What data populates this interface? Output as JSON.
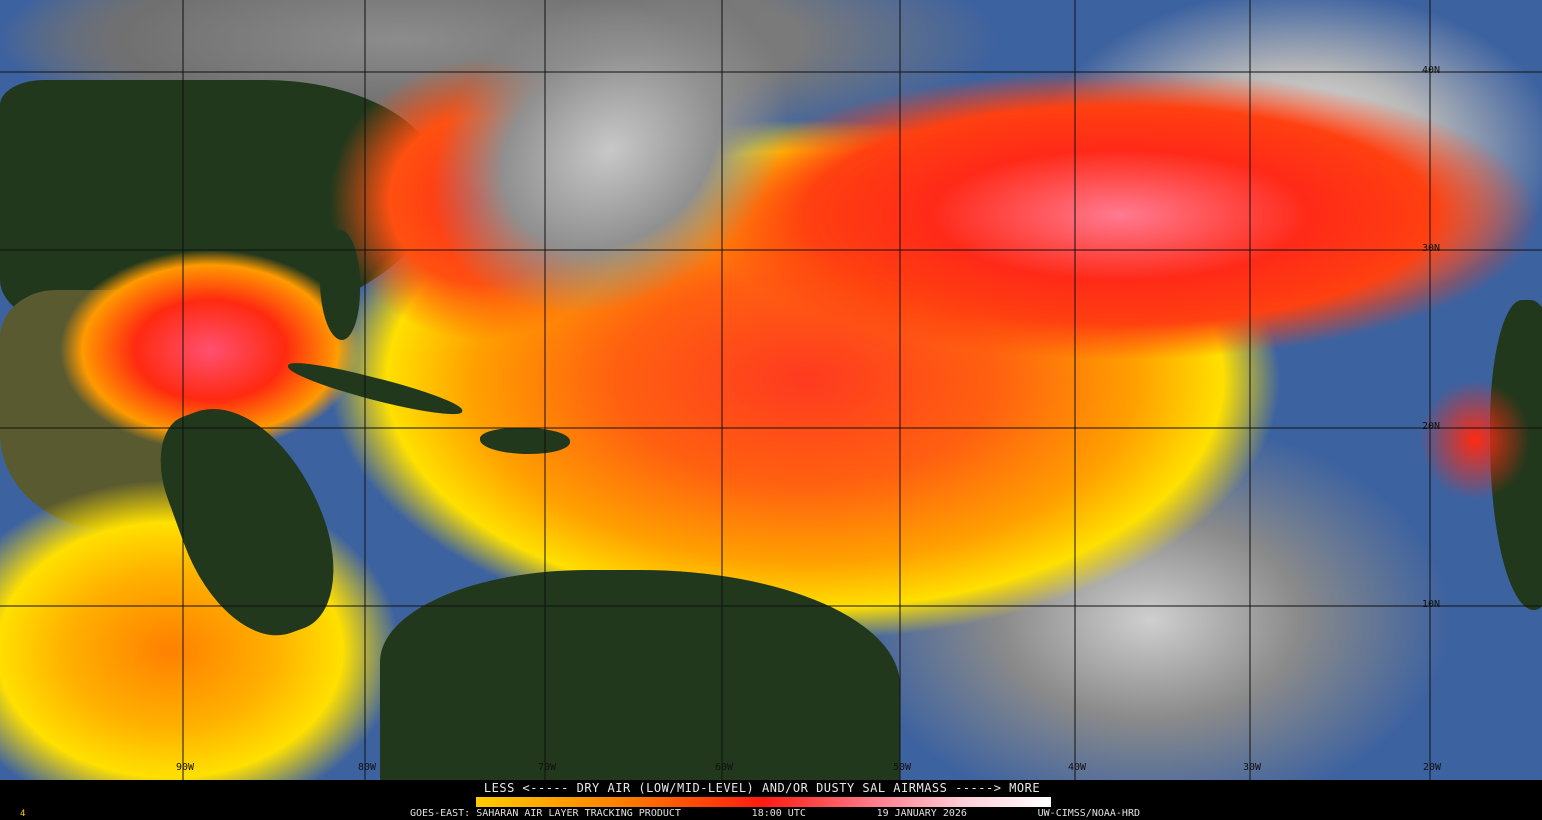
{
  "product": {
    "legend_title": "LESS <----- DRY AIR (LOW/MID-LEVEL) AND/OR DUSTY SAL AIRMASS -----> MORE",
    "satellite": "GOES-EAST: SAHARAN AIR LAYER TRACKING PRODUCT",
    "time": "18:00 UTC",
    "date": "19 JANUARY 2026",
    "credit": "UW-CIMSS/NOAA-HRD",
    "frame_number": "4"
  },
  "colorbar": {
    "low_label": "LESS",
    "high_label": "MORE",
    "colors": [
      "#ffcc00",
      "#ff8000",
      "#ff1a10",
      "#ff8090",
      "#ffffff"
    ]
  },
  "longitude_labels": [
    "90W",
    "80W",
    "70W",
    "60W",
    "50W",
    "40W",
    "30W",
    "20W"
  ],
  "latitude_labels": [
    "40N",
    "30N",
    "20N",
    "10N"
  ],
  "colors": {
    "ocean": "#3d62a0",
    "land": "#22381c",
    "cloud": "#b0b0b0",
    "dry_air_low": "#ffcc00",
    "dry_air_high": "#ffffff"
  }
}
